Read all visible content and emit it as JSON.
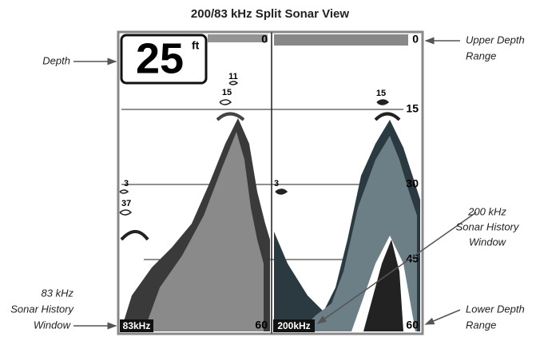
{
  "title": "200/83 kHz Split Sonar View",
  "callouts": {
    "depth": [
      "Depth"
    ],
    "upper_depth_range": [
      "Upper Depth",
      "Range"
    ],
    "history_200": [
      "200 kHz",
      "Sonar History",
      "Window"
    ],
    "history_83": [
      "83 kHz",
      "Sonar History",
      "Window"
    ],
    "lower_depth_range": [
      "Lower Depth",
      "Range"
    ]
  },
  "screen": {
    "depth_value": "25",
    "depth_unit": "ft",
    "left": {
      "upper_range": "0",
      "lower_range": "60",
      "frequency": "83kHz",
      "fish": [
        "11",
        "15",
        "3",
        "37"
      ]
    },
    "right": {
      "upper_range": "0",
      "lower_range": "60",
      "frequency": "200kHz",
      "fish": [
        "15",
        "3"
      ],
      "depth_marks": [
        "15",
        "30",
        "45"
      ]
    }
  }
}
